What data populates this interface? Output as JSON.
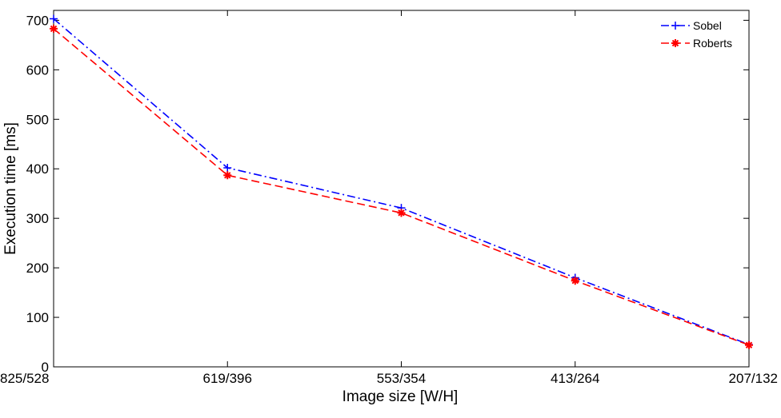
{
  "chart_data": {
    "type": "line",
    "title": "",
    "xlabel": "Image size [W/H]",
    "ylabel": "Execution time [ms]",
    "categories": [
      "825/528",
      "619/396",
      "553/354",
      "413/264",
      "207/132"
    ],
    "ylim": [
      0,
      720
    ],
    "yticks": [
      0,
      100,
      200,
      300,
      400,
      500,
      600,
      700
    ],
    "grid": false,
    "legend_position": "top-right",
    "series": [
      {
        "name": "Sobel",
        "values": [
          703,
          402,
          321,
          180,
          45
        ],
        "color": "#0000ff",
        "line_style": "dash-dot",
        "marker": "plus"
      },
      {
        "name": "Roberts",
        "values": [
          683,
          387,
          311,
          174,
          44
        ],
        "color": "#ff0000",
        "line_style": "dashed",
        "marker": "star"
      }
    ]
  }
}
